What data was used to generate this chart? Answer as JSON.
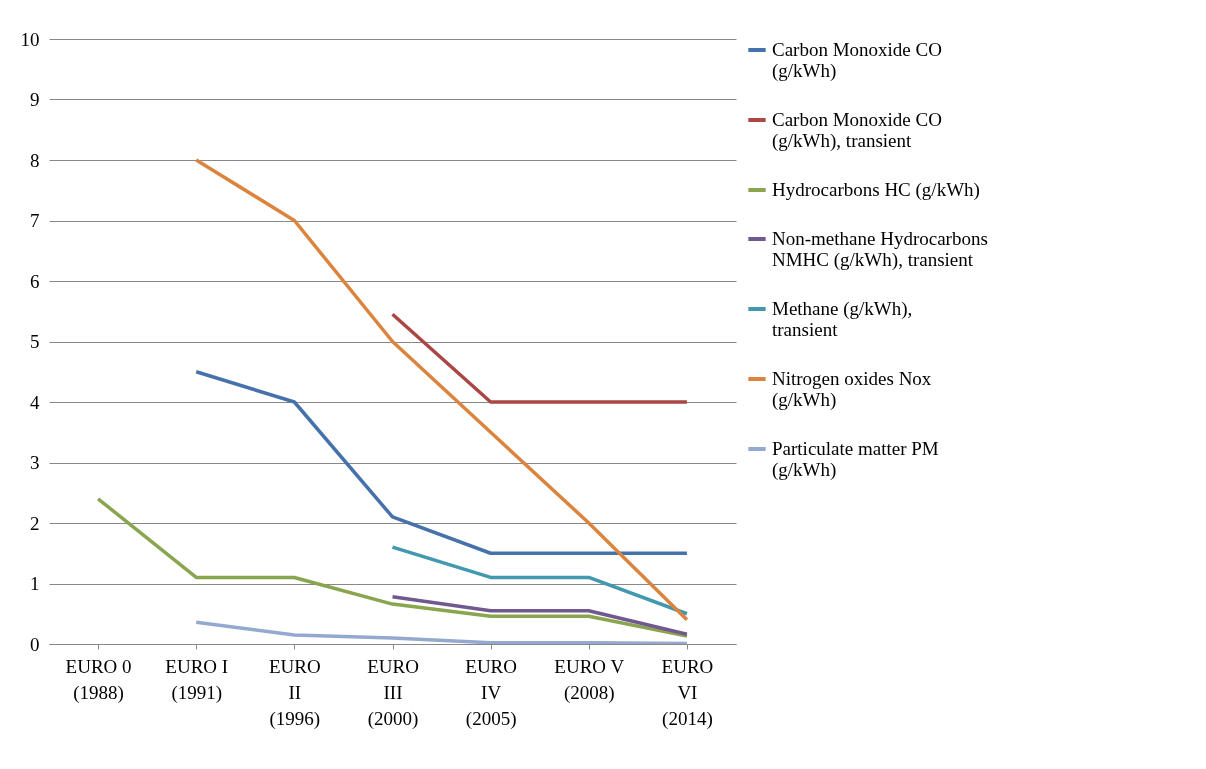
{
  "chart_data": {
    "type": "line",
    "categories": [
      "EURO 0 (1988)",
      "EURO I (1991)",
      "EURO II (1996)",
      "EURO III (2000)",
      "EURO IV (2005)",
      "EURO V (2008)",
      "EURO VI (2014)"
    ],
    "series": [
      {
        "name": "Carbon Monoxide CO (g/kWh)",
        "color": "#4672ac",
        "values": [
          null,
          4.5,
          4.0,
          2.1,
          1.5,
          1.5,
          1.5
        ]
      },
      {
        "name": "Carbon Monoxide CO (g/kWh), transient",
        "color": "#aa4643",
        "values": [
          null,
          null,
          null,
          5.45,
          4.0,
          4.0,
          4.0
        ]
      },
      {
        "name": "Hydrocarbons HC (g/kWh)",
        "color": "#89a54e",
        "values": [
          2.4,
          1.1,
          1.1,
          0.66,
          0.46,
          0.46,
          0.13
        ]
      },
      {
        "name": "Non-methane Hydrocarbons NMHC (g/kWh), transient",
        "color": "#71588f",
        "values": [
          null,
          null,
          null,
          0.78,
          0.55,
          0.55,
          0.16
        ]
      },
      {
        "name": "Methane (g/kWh), transient",
        "color": "#4198af",
        "values": [
          null,
          null,
          null,
          1.6,
          1.1,
          1.1,
          0.5
        ]
      },
      {
        "name": "Nitrogen oxides Nox (g/kWh)",
        "color": "#db843d",
        "values": [
          null,
          8,
          7,
          5,
          3.5,
          2.0,
          0.4
        ]
      },
      {
        "name": "Particulate matter PM (g/kWh)",
        "color": "#93a9cf",
        "values": [
          null,
          0.36,
          0.15,
          0.1,
          0.02,
          0.02,
          0.01
        ]
      }
    ],
    "ylim": [
      0,
      10
    ],
    "yticks": [
      0,
      1,
      2,
      3,
      4,
      5,
      6,
      7,
      8,
      9,
      10
    ],
    "grid": "y",
    "legend": "right",
    "marker": "none",
    "line_style": "solid"
  }
}
